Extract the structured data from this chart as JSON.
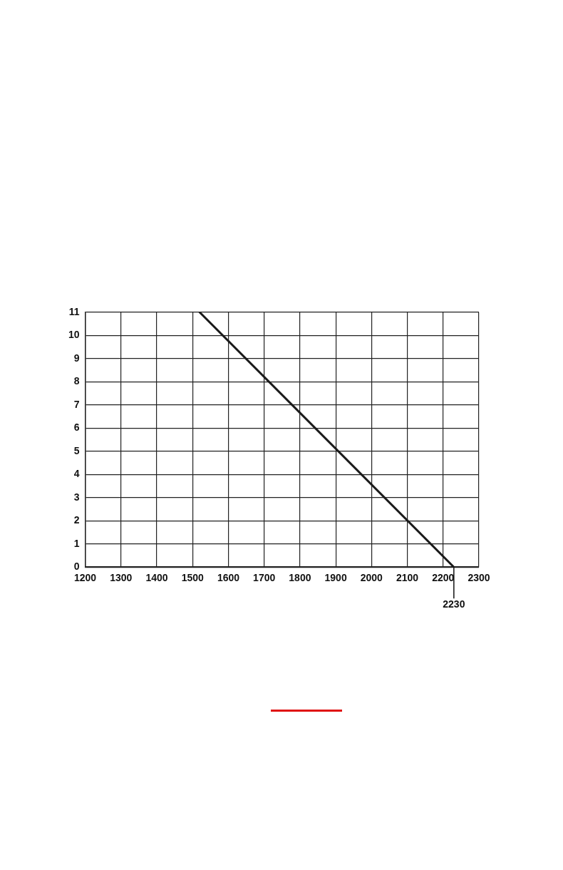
{
  "chart_data": {
    "type": "line",
    "x": [
      1520,
      2230
    ],
    "series": [
      {
        "color": "#1a1a1a",
        "values": [
          11,
          0
        ]
      }
    ],
    "xlim": [
      1200,
      2300
    ],
    "xticks": [
      1200,
      1300,
      1400,
      1500,
      1600,
      1700,
      1800,
      1900,
      2000,
      2100,
      2200,
      2300
    ],
    "ylim": [
      0,
      11
    ],
    "yticks": [
      0,
      1,
      2,
      3,
      4,
      5,
      6,
      7,
      8,
      9,
      10,
      11
    ],
    "grid": true,
    "legend": false,
    "marker": "none",
    "line_style": "solid",
    "annotations": [
      {
        "text": "2230",
        "x": 2230,
        "y": 0
      }
    ]
  }
}
